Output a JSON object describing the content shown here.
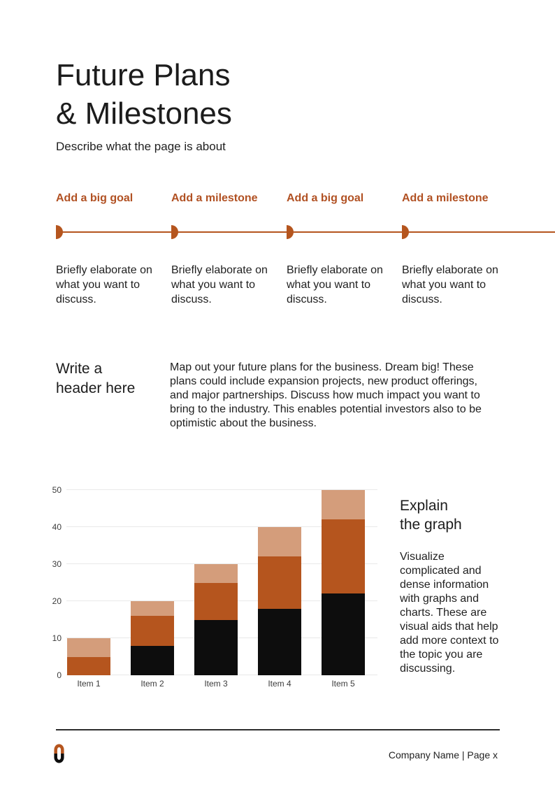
{
  "page": {
    "title_lines": [
      "Future Plans",
      "& Milestones"
    ],
    "subtitle": "Describe what the page is about"
  },
  "timeline": {
    "items": [
      {
        "label": "Add a big goal",
        "description": "Briefly elaborate on what you want to discuss."
      },
      {
        "label": "Add a milestone",
        "description": "Briefly elaborate on what you want to discuss."
      },
      {
        "label": "Add a big goal",
        "description": "Briefly elaborate on what you want to discuss."
      },
      {
        "label": "Add a milestone",
        "description": "Briefly elaborate on what you want to discuss."
      }
    ]
  },
  "section": {
    "heading_lines": [
      "Write a",
      "header here"
    ],
    "body": "Map out your future plans for the business. Dream big! These plans could include expansion projects, new product offerings, and major partnerships. Discuss how much impact you want to bring to the industry. This enables potential investors also to be optimistic about the business."
  },
  "chart_data": {
    "type": "bar",
    "stacked": true,
    "categories": [
      "Item 1",
      "Item 2",
      "Item 3",
      "Item 4",
      "Item 5"
    ],
    "series": [
      {
        "name": "series-1-black",
        "color": "#0d0d0d",
        "values": [
          0,
          8,
          15,
          18,
          22
        ]
      },
      {
        "name": "series-2-orange",
        "color": "#b5551e",
        "values": [
          5,
          8,
          10,
          14,
          20
        ]
      },
      {
        "name": "series-3-tan",
        "color": "#d49d7b",
        "values": [
          5,
          4,
          5,
          8,
          8
        ]
      }
    ],
    "totals": [
      10,
      20,
      30,
      40,
      50
    ],
    "yticks": [
      0,
      10,
      20,
      30,
      40,
      50
    ],
    "ylim": [
      0,
      50
    ],
    "grid": true,
    "legend": false,
    "title": "",
    "xlabel": "",
    "ylabel": ""
  },
  "graph_section": {
    "heading_lines": [
      "Explain",
      "the graph"
    ],
    "body": "Visualize complicated and dense information with graphs and charts. These are visual aids that help add more context to the topic you are discussing."
  },
  "footer": {
    "company_page": "Company Name | Page x",
    "logo": "chain-link-logo"
  },
  "colors": {
    "accent": "#b5551e",
    "accent_text": "#b15123",
    "tan": "#d49d7b",
    "bar_black": "#0d0d0d",
    "grid": "#e9e9e9",
    "footer_line": "#2d2d2d"
  }
}
